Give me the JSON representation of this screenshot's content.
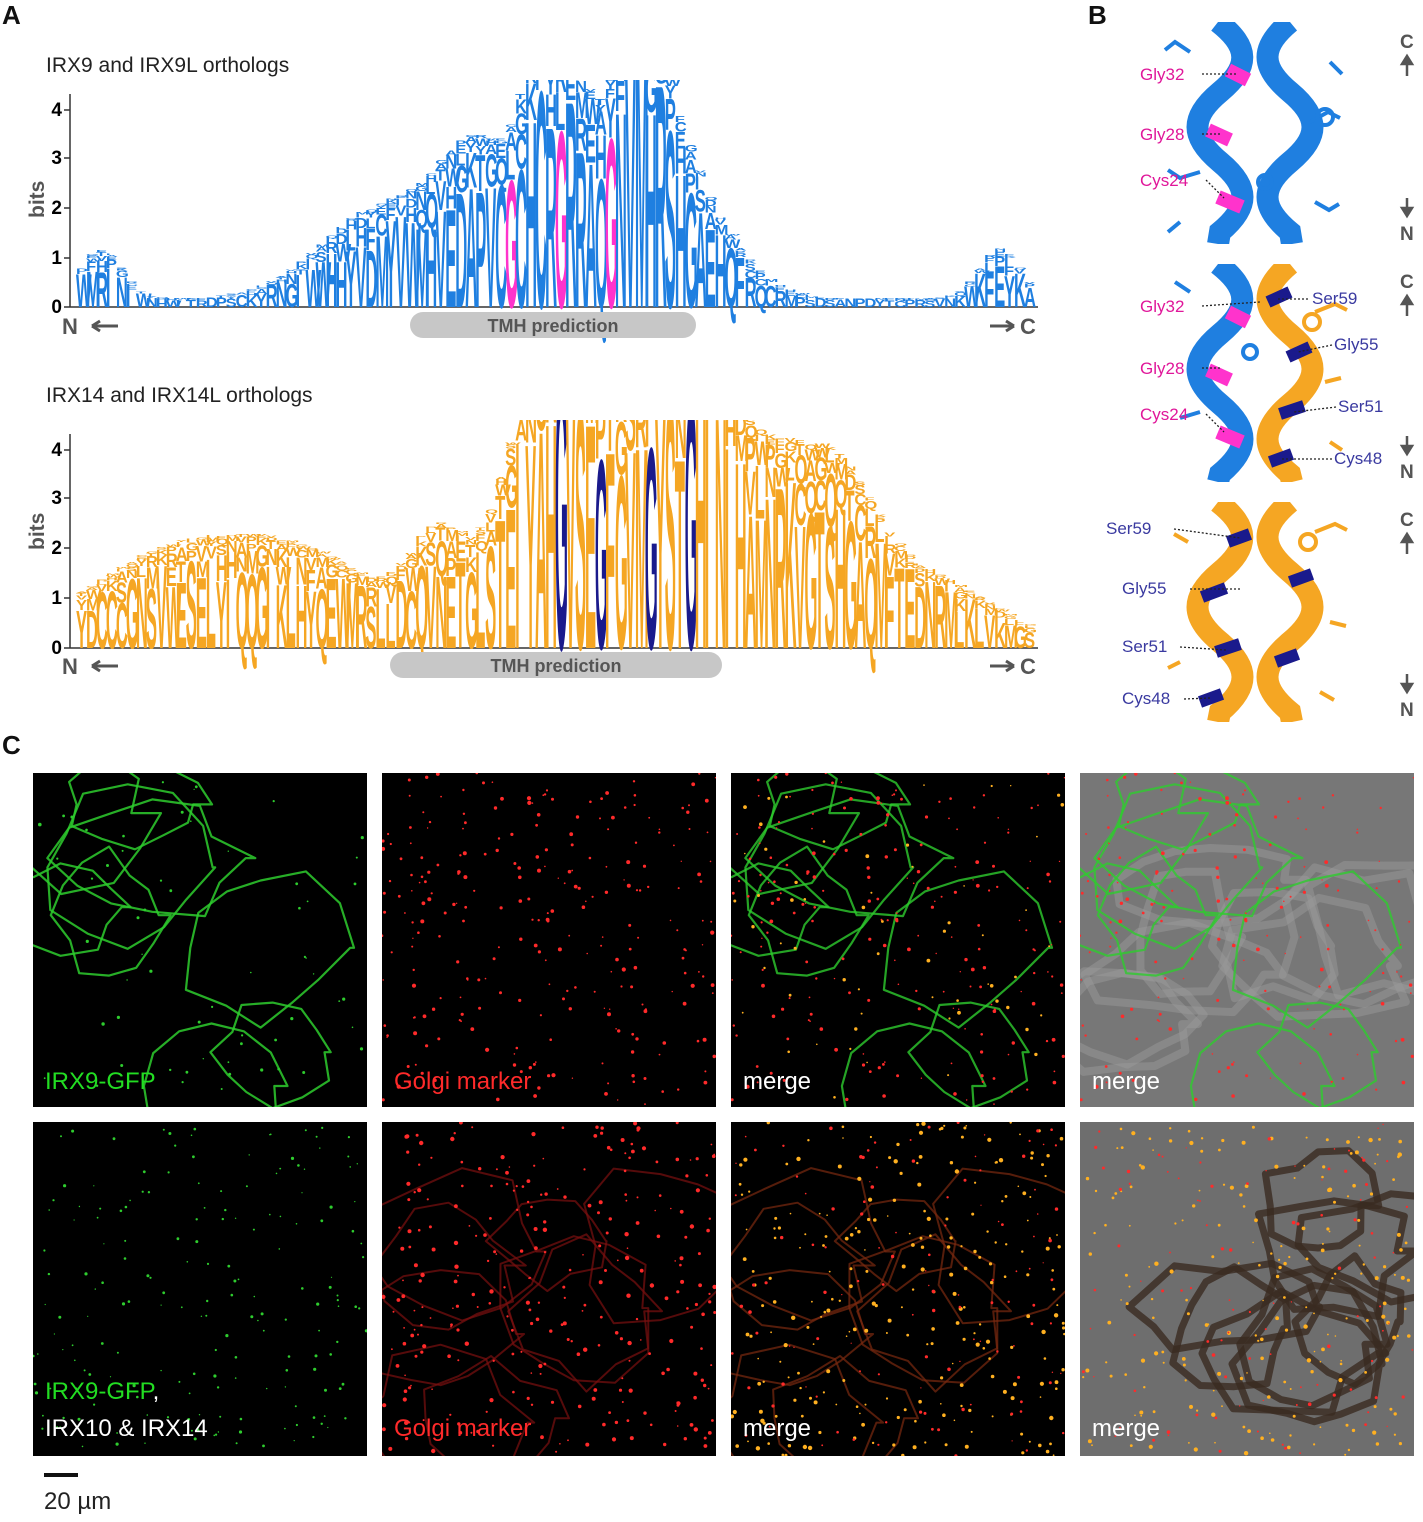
{
  "panels": {
    "A": "A",
    "B": "B",
    "C": "C"
  },
  "logo_top": {
    "title": "IRX9 and IRX9L orthologs",
    "ylabel": "bits",
    "yticks": [
      "0",
      "1",
      "2",
      "3",
      "4"
    ],
    "n_label": "N",
    "c_label": "C",
    "tmh_label": "TMH prediction",
    "color": "#1f7fe0",
    "highlight_color": "#ff33cc"
  },
  "logo_bottom": {
    "title": "IRX14 and IRX14L orthologs",
    "ylabel": "bits",
    "yticks": [
      "0",
      "1",
      "2",
      "3",
      "4"
    ],
    "n_label": "N",
    "c_label": "C",
    "tmh_label": "TMH prediction",
    "color": "#f5a623",
    "highlight_color": "#1a1a8c"
  },
  "panel_b": {
    "top": {
      "labels": [
        "Gly32",
        "Gly28",
        "Cys24"
      ],
      "label_color": "#e0179a"
    },
    "middle": {
      "left_labels": [
        "Gly32",
        "Gly28",
        "Cys24"
      ],
      "right_labels": [
        "Ser59",
        "Gly55",
        "Ser51",
        "Cys48"
      ],
      "left_color": "#e0179a",
      "right_color": "#3a3aa0"
    },
    "bottom": {
      "labels": [
        "Ser59",
        "Gly55",
        "Ser51",
        "Cys48"
      ],
      "label_color": "#3a3aa0"
    },
    "c_label": "C",
    "n_label": "N"
  },
  "panel_c": {
    "row1": [
      "IRX9-GFP",
      "Golgi marker",
      "merge",
      "merge"
    ],
    "row2_line1": "IRX9-GFP",
    "row2_line1_suffix": ",",
    "row2_line2": "IRX10 & IRX14",
    "row2": [
      "Golgi marker",
      "merge",
      "merge"
    ],
    "scale_bar": "20 µm",
    "green": "#22dd22",
    "red": "#ff2a2a",
    "white": "#ffffff"
  }
}
